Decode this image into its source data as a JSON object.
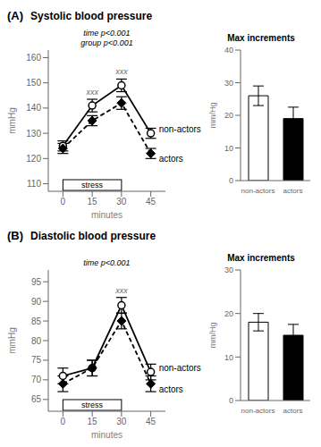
{
  "chart_data": [
    {
      "type": "line",
      "label": "(A)",
      "title": "Systolic blood pressure",
      "xlabel": "minutes",
      "ylabel": "mmHg",
      "categories": [
        "0",
        "15",
        "30",
        "45"
      ],
      "series": [
        {
          "name": "non-actors",
          "color": "black",
          "marker": "circle",
          "line_style": "solid",
          "values": [
            125,
            141,
            149,
            130
          ],
          "error": [
            2.0,
            2.5,
            2.5,
            2.0
          ]
        },
        {
          "name": "actors",
          "color": "black",
          "marker": "diamond",
          "line_style": "dashed",
          "values": [
            124,
            135,
            142,
            122
          ],
          "error": [
            2.0,
            2.0,
            2.5,
            2.0
          ]
        }
      ],
      "ylim": [
        107,
        163
      ],
      "yticks": [
        110,
        120,
        130,
        140,
        150,
        160
      ],
      "grid": false,
      "annotations": [
        {
          "text": "time p<0.001\ngroup p<0.001"
        },
        {
          "text": "xxx",
          "x": "15",
          "series": "non-actors"
        },
        {
          "text": "xxx",
          "x": "30",
          "series": "non-actors"
        },
        {
          "text": "stress",
          "x": [
            "0",
            "30"
          ]
        }
      ]
    },
    {
      "type": "bar",
      "title": "Max increments",
      "ylabel": "mm/Hg",
      "categories": [
        "non-actors",
        "actors"
      ],
      "values": [
        26,
        19
      ],
      "error": [
        3.0,
        3.5
      ],
      "colors": [
        "white",
        "black"
      ],
      "ylim": [
        0,
        40
      ],
      "yticks": [
        0,
        10,
        20,
        30,
        40
      ],
      "grid": false
    },
    {
      "type": "line",
      "label": "(B)",
      "title": "Diastolic blood pressure",
      "xlabel": "minutes",
      "ylabel": "mmHg",
      "categories": [
        "0",
        "15",
        "30",
        "45"
      ],
      "series": [
        {
          "name": "non-actors",
          "color": "black",
          "marker": "circle",
          "line_style": "solid",
          "values": [
            71,
            73,
            89,
            72
          ],
          "error": [
            2.0,
            2.0,
            2.0,
            2.0
          ]
        },
        {
          "name": "actors",
          "color": "black",
          "marker": "diamond",
          "line_style": "dashed",
          "values": [
            69,
            73,
            85,
            69
          ],
          "error": [
            2.0,
            2.0,
            2.0,
            2.0
          ]
        }
      ],
      "ylim": [
        62,
        98
      ],
      "yticks": [
        65,
        70,
        75,
        80,
        85,
        90,
        95
      ],
      "grid": false,
      "annotations": [
        {
          "text": "time p<0.001"
        },
        {
          "text": "xxx",
          "x": "30",
          "series": "non-actors"
        },
        {
          "text": "stress",
          "x": [
            "0",
            "30"
          ]
        }
      ]
    },
    {
      "type": "bar",
      "title": "Max increments",
      "ylabel": "mm/Hg",
      "categories": [
        "non-actors",
        "actors"
      ],
      "values": [
        18,
        15
      ],
      "error": [
        2.0,
        2.5
      ],
      "colors": [
        "white",
        "black"
      ],
      "ylim": [
        0,
        30
      ],
      "yticks": [
        0,
        10,
        20,
        30
      ],
      "grid": false
    }
  ]
}
